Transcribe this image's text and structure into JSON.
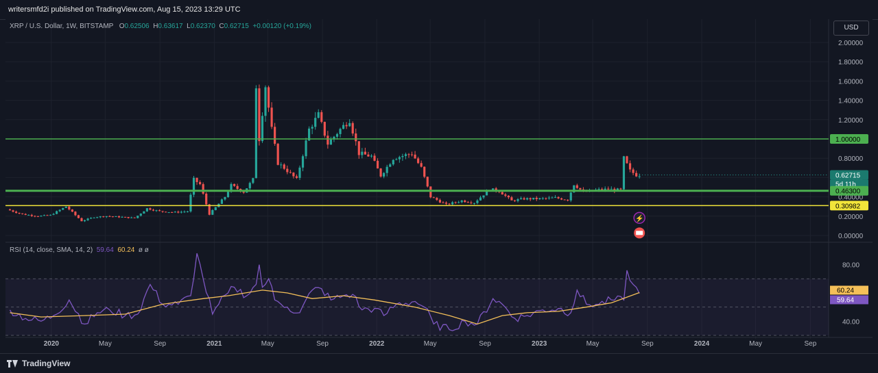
{
  "header": {
    "publish_text": "writersmfd2i published on TradingView.com, Aug 15, 2023 13:29 UTC"
  },
  "legend": {
    "symbol": "XRP / U.S. Dollar, 1W, BITSTAMP",
    "o_label": "O",
    "o": "0.62506",
    "h_label": "H",
    "h": "0.63617",
    "l_label": "L",
    "l": "0.62370",
    "c_label": "C",
    "c": "0.62715",
    "change": "+0.00120 (+0.19%)"
  },
  "currency_button": "USD",
  "rsi_legend": {
    "title": "RSI (14, close, SMA, 14, 2)",
    "rsi": "59.64",
    "sma": "60.24",
    "null_marks": "ø ø"
  },
  "footer": {
    "brand": "TradingView"
  },
  "colors": {
    "background": "#131722",
    "up": "#26a69a",
    "down": "#ef5350",
    "green_level": "#4caf50",
    "yellow_level": "#f2e53a",
    "rsi_line": "#7e57c2",
    "rsi_sma": "#f5c059",
    "grid": "#1e222d"
  },
  "chart_data": [
    {
      "type": "candlestick",
      "title": "XRP / U.S. Dollar, 1W, BITSTAMP",
      "y_axis_ticks": [
        "2.00000",
        "1.80000",
        "1.60000",
        "1.40000",
        "1.20000",
        "1.00000",
        "0.80000",
        "0.60000",
        "0.40000",
        "0.20000",
        "0.00000"
      ],
      "ylim": [
        0,
        2.0
      ],
      "x_axis_labels": [
        "2020",
        "May",
        "Sep",
        "2021",
        "May",
        "Sep",
        "2022",
        "May",
        "Sep",
        "2023",
        "May",
        "Sep",
        "2024",
        "May",
        "Sep"
      ],
      "x_axis_label_dates": [
        "2020-01-01",
        "2020-05-01",
        "2020-09-01",
        "2021-01-01",
        "2021-05-01",
        "2021-09-01",
        "2022-01-01",
        "2022-05-01",
        "2022-09-01",
        "2023-01-01",
        "2023-05-01",
        "2023-09-01",
        "2024-01-01",
        "2024-05-01",
        "2024-09-01"
      ],
      "horizontal_levels": [
        {
          "value": 1.0,
          "label": "1.00000",
          "color": "#4caf50"
        },
        {
          "value": 0.463,
          "label": "0.46300",
          "color": "#4caf50"
        },
        {
          "value": 0.30982,
          "label": "0.30982",
          "color": "#f2e53a"
        }
      ],
      "last_price": {
        "value": 0.62715,
        "label": "0.62715",
        "countdown": "5d 11h"
      },
      "price_path": [
        [
          "2019-09-30",
          0.27
        ],
        [
          "2019-11-04",
          0.22
        ],
        [
          "2019-12-09",
          0.2
        ],
        [
          "2020-01-06",
          0.21
        ],
        [
          "2020-02-10",
          0.3
        ],
        [
          "2020-03-16",
          0.15
        ],
        [
          "2020-04-13",
          0.19
        ],
        [
          "2020-05-11",
          0.2
        ],
        [
          "2020-06-15",
          0.19
        ],
        [
          "2020-07-13",
          0.18
        ],
        [
          "2020-08-10",
          0.28
        ],
        [
          "2020-09-07",
          0.25
        ],
        [
          "2020-10-12",
          0.24
        ],
        [
          "2020-11-09",
          0.25
        ],
        [
          "2020-11-23",
          0.58
        ],
        [
          "2020-12-07",
          0.53
        ],
        [
          "2020-12-28",
          0.22
        ],
        [
          "2021-01-11",
          0.29
        ],
        [
          "2021-02-01",
          0.4
        ],
        [
          "2021-02-15",
          0.52
        ],
        [
          "2021-03-15",
          0.45
        ],
        [
          "2021-04-05",
          0.58
        ],
        [
          "2021-04-12",
          1.55
        ],
        [
          "2021-04-19",
          1.0
        ],
        [
          "2021-05-03",
          1.55
        ],
        [
          "2021-05-17",
          1.1
        ],
        [
          "2021-05-31",
          0.75
        ],
        [
          "2021-06-14",
          0.7
        ],
        [
          "2021-07-12",
          0.58
        ],
        [
          "2021-08-09",
          1.1
        ],
        [
          "2021-08-30",
          1.25
        ],
        [
          "2021-09-20",
          0.95
        ],
        [
          "2021-10-18",
          1.1
        ],
        [
          "2021-11-08",
          1.2
        ],
        [
          "2021-11-29",
          0.85
        ],
        [
          "2021-12-27",
          0.82
        ],
        [
          "2022-01-17",
          0.62
        ],
        [
          "2022-02-14",
          0.8
        ],
        [
          "2022-03-28",
          0.85
        ],
        [
          "2022-04-18",
          0.7
        ],
        [
          "2022-05-09",
          0.4
        ],
        [
          "2022-06-13",
          0.32
        ],
        [
          "2022-07-18",
          0.36
        ],
        [
          "2022-08-15",
          0.34
        ],
        [
          "2022-09-19",
          0.48
        ],
        [
          "2022-10-10",
          0.46
        ],
        [
          "2022-11-07",
          0.36
        ],
        [
          "2022-12-05",
          0.38
        ],
        [
          "2023-01-09",
          0.38
        ],
        [
          "2023-02-13",
          0.39
        ],
        [
          "2023-03-13",
          0.37
        ],
        [
          "2023-03-27",
          0.53
        ],
        [
          "2023-04-17",
          0.45
        ],
        [
          "2023-05-15",
          0.47
        ],
        [
          "2023-06-12",
          0.48
        ],
        [
          "2023-07-10",
          0.47
        ],
        [
          "2023-07-17",
          0.8
        ],
        [
          "2023-07-31",
          0.67
        ],
        [
          "2023-08-14",
          0.627
        ]
      ]
    },
    {
      "type": "line",
      "title": "RSI (14, close, SMA, 14, 2)",
      "y_axis_ticks": [
        "80.00",
        "40.00"
      ],
      "ylim": [
        30,
        90
      ],
      "band": [
        70,
        30
      ],
      "middle": 50,
      "current_labels": [
        "60.24",
        "59.64"
      ],
      "series": [
        {
          "name": "RSI",
          "color": "#7e57c2",
          "values": [
            [
              "2019-09-30",
              48
            ],
            [
              "2019-11-04",
              42
            ],
            [
              "2019-12-09",
              40
            ],
            [
              "2020-01-06",
              44
            ],
            [
              "2020-02-10",
              55
            ],
            [
              "2020-03-16",
              38
            ],
            [
              "2020-04-13",
              46
            ],
            [
              "2020-05-11",
              48
            ],
            [
              "2020-06-15",
              44
            ],
            [
              "2020-07-13",
              45
            ],
            [
              "2020-08-10",
              66
            ],
            [
              "2020-09-07",
              52
            ],
            [
              "2020-10-12",
              52
            ],
            [
              "2020-11-09",
              58
            ],
            [
              "2020-11-23",
              88
            ],
            [
              "2020-12-07",
              70
            ],
            [
              "2020-12-28",
              45
            ],
            [
              "2021-01-11",
              52
            ],
            [
              "2021-02-01",
              60
            ],
            [
              "2021-02-15",
              64
            ],
            [
              "2021-03-15",
              58
            ],
            [
              "2021-04-05",
              66
            ],
            [
              "2021-04-12",
              80
            ],
            [
              "2021-04-19",
              64
            ],
            [
              "2021-05-03",
              70
            ],
            [
              "2021-05-17",
              55
            ],
            [
              "2021-05-31",
              52
            ],
            [
              "2021-06-14",
              50
            ],
            [
              "2021-07-12",
              46
            ],
            [
              "2021-08-09",
              62
            ],
            [
              "2021-08-30",
              63
            ],
            [
              "2021-09-20",
              55
            ],
            [
              "2021-10-18",
              58
            ],
            [
              "2021-11-08",
              59
            ],
            [
              "2021-11-29",
              48
            ],
            [
              "2021-12-27",
              49
            ],
            [
              "2022-01-17",
              44
            ],
            [
              "2022-02-14",
              52
            ],
            [
              "2022-03-28",
              54
            ],
            [
              "2022-04-18",
              50
            ],
            [
              "2022-05-09",
              38
            ],
            [
              "2022-06-13",
              34
            ],
            [
              "2022-07-18",
              40
            ],
            [
              "2022-08-15",
              38
            ],
            [
              "2022-09-19",
              56
            ],
            [
              "2022-10-10",
              52
            ],
            [
              "2022-11-07",
              42
            ],
            [
              "2022-12-05",
              44
            ],
            [
              "2023-01-09",
              48
            ],
            [
              "2023-02-13",
              49
            ],
            [
              "2023-03-13",
              46
            ],
            [
              "2023-03-27",
              62
            ],
            [
              "2023-04-17",
              52
            ],
            [
              "2023-05-15",
              52
            ],
            [
              "2023-06-12",
              55
            ],
            [
              "2023-07-10",
              55
            ],
            [
              "2023-07-17",
              76
            ],
            [
              "2023-07-31",
              66
            ],
            [
              "2023-08-14",
              59.64
            ]
          ]
        },
        {
          "name": "SMA",
          "color": "#f5c059",
          "values": [
            [
              "2019-09-30",
              46
            ],
            [
              "2019-12-09",
              43
            ],
            [
              "2020-03-16",
              44
            ],
            [
              "2020-06-15",
              45
            ],
            [
              "2020-09-07",
              52
            ],
            [
              "2020-12-07",
              56
            ],
            [
              "2021-02-01",
              58
            ],
            [
              "2021-04-19",
              62
            ],
            [
              "2021-06-14",
              60
            ],
            [
              "2021-08-09",
              56
            ],
            [
              "2021-10-18",
              58
            ],
            [
              "2021-12-27",
              55
            ],
            [
              "2022-03-28",
              50
            ],
            [
              "2022-06-13",
              44
            ],
            [
              "2022-08-15",
              38
            ],
            [
              "2022-10-10",
              44
            ],
            [
              "2022-12-05",
              46
            ],
            [
              "2023-02-13",
              47
            ],
            [
              "2023-04-17",
              50
            ],
            [
              "2023-06-12",
              53
            ],
            [
              "2023-08-14",
              60.24
            ]
          ]
        }
      ]
    }
  ]
}
